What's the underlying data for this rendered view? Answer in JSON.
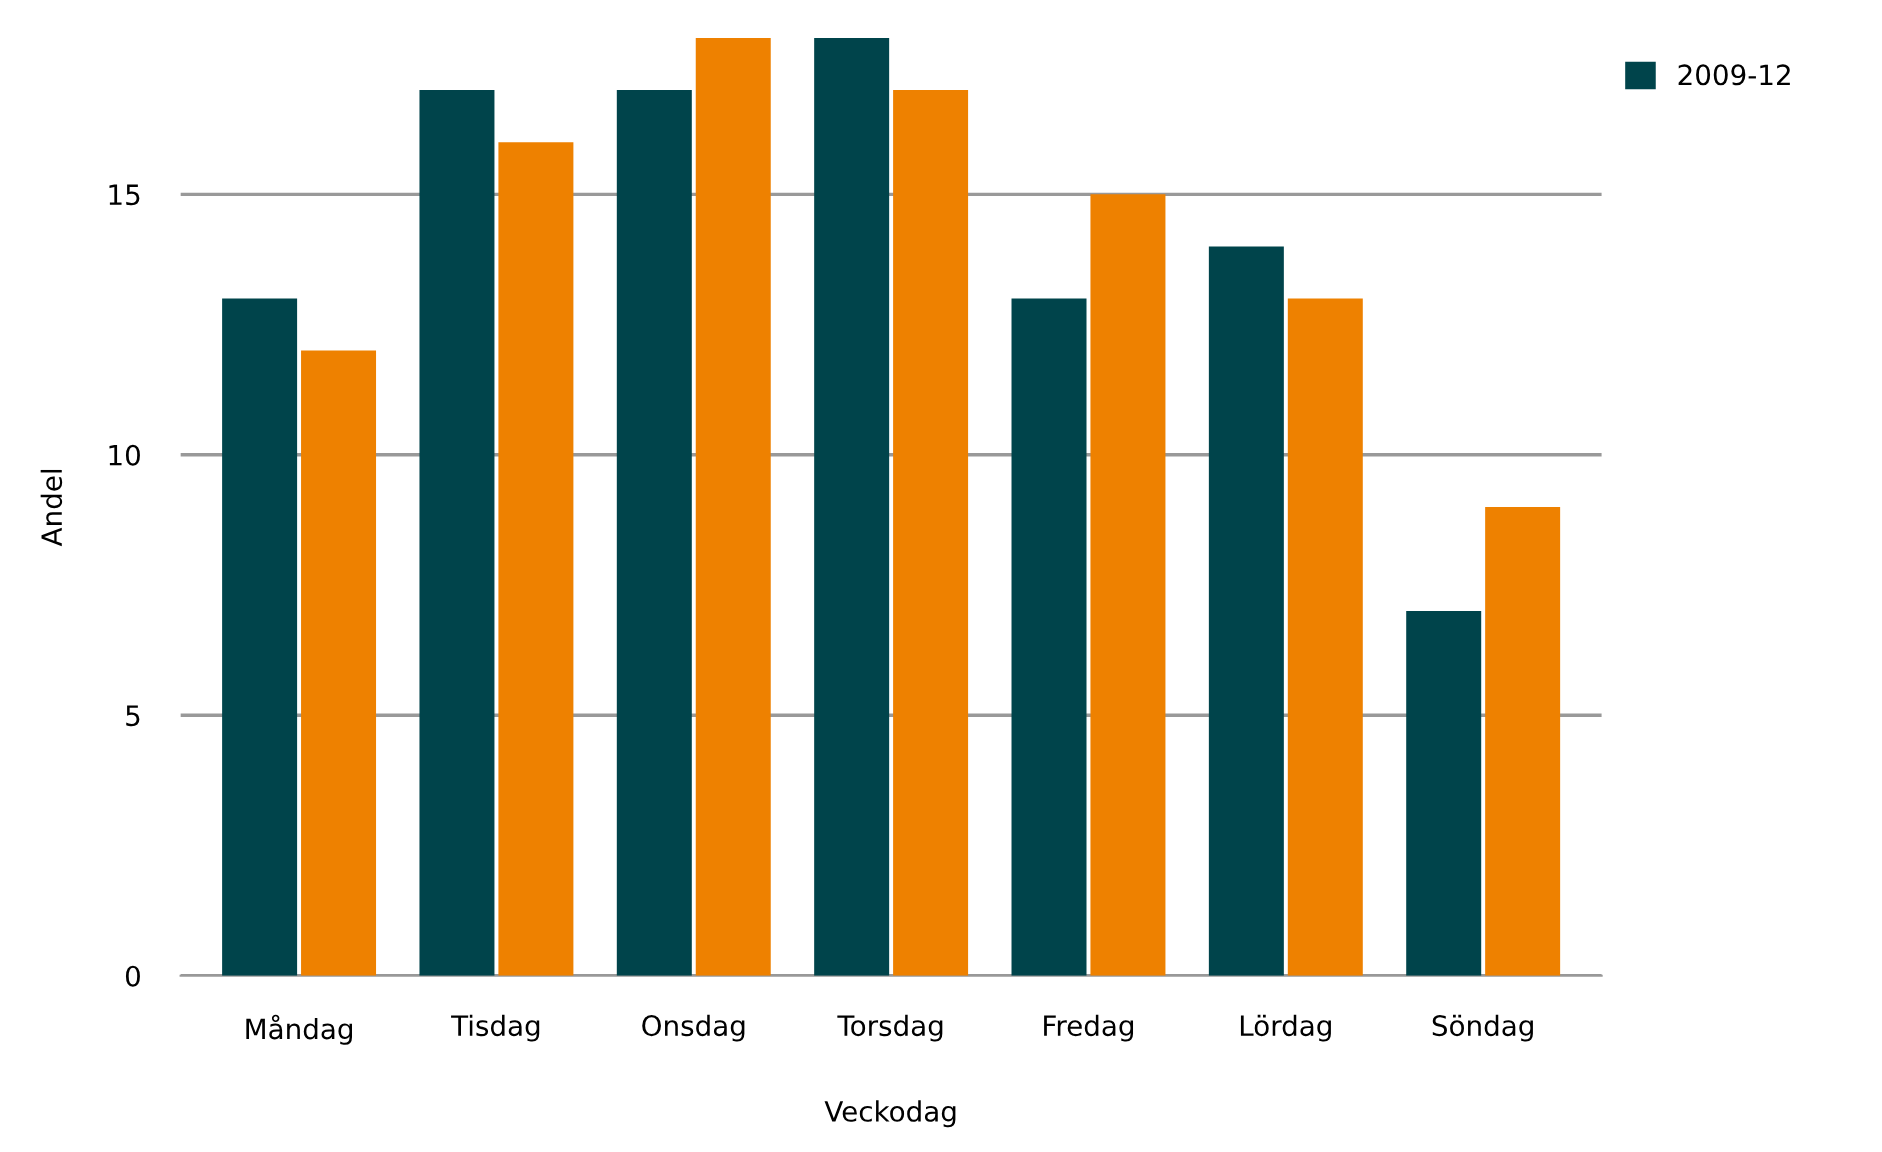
{
  "chart_data": {
    "type": "bar",
    "xlabel": "Veckodag",
    "ylabel": "Andel",
    "categories": [
      "Måndag",
      "Tisdag",
      "Onsdag",
      "Torsdag",
      "Fredag",
      "Lördag",
      "Söndag"
    ],
    "series": [
      {
        "name": "2009-12",
        "color": "#00444b",
        "values": [
          13,
          17,
          17,
          18,
          13,
          14,
          7
        ]
      },
      {
        "color": "#ee8100",
        "values": [
          12,
          16,
          18,
          17,
          15,
          13,
          9
        ]
      }
    ],
    "ylim": [
      0,
      18
    ],
    "yticks": [
      0,
      5,
      10,
      15
    ],
    "grid": "y",
    "legend": "top right"
  }
}
